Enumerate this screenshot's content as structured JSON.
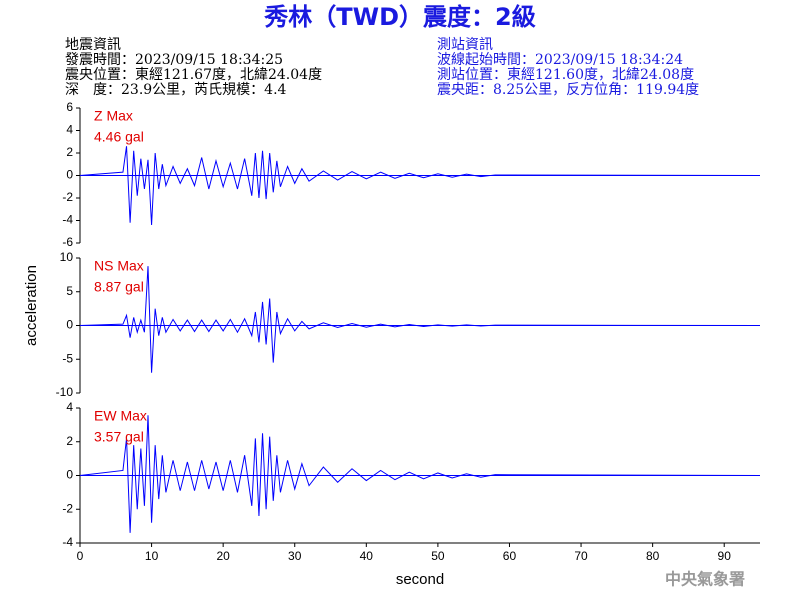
{
  "header": {
    "title": "秀林（TWD）震度：2級",
    "left": [
      "地震資訊",
      "發震時間：2023/09/15 18:34:25",
      "震央位置：東經121.67度，北緯24.04度",
      "深　度：23.9公里，芮氏規模：4.4"
    ],
    "right": [
      "測站資訊",
      "波線起始時間：2023/09/15 18:34:24",
      "測站位置：東經121.60度，北緯24.08度",
      "震央距：8.25公里，反方位角：119.94度"
    ]
  },
  "footer": "中央氣象署",
  "chart_data": [
    {
      "type": "line",
      "annotations": [
        "Z Max",
        "4.46 gal"
      ],
      "color": "#0000ff",
      "xlim": [
        0,
        95
      ],
      "ylim": [
        -6,
        6
      ],
      "yticks": [
        -6,
        -4,
        -2,
        0,
        2,
        4,
        6
      ],
      "x": [
        0,
        6,
        6.5,
        7,
        7.5,
        8,
        8.5,
        9,
        9.5,
        10,
        10.5,
        11,
        11.5,
        12,
        13,
        14,
        15,
        16,
        17,
        18,
        19,
        20,
        21,
        22,
        23,
        24,
        24.5,
        25,
        25.5,
        26,
        26.5,
        27,
        27.5,
        28,
        29,
        30,
        31,
        32,
        34,
        36,
        38,
        40,
        42,
        44,
        46,
        48,
        50,
        52,
        54,
        56,
        58,
        95
      ],
      "values": [
        0,
        0.3,
        2.6,
        -4.2,
        2.2,
        -1.8,
        1.5,
        -1.2,
        1.4,
        -4.4,
        2.0,
        -1.2,
        1.0,
        -0.9,
        0.8,
        -0.7,
        0.6,
        -0.9,
        1.6,
        -1.2,
        1.3,
        -1.0,
        1.1,
        -1.2,
        1.5,
        -1.8,
        2.0,
        -2.0,
        2.2,
        -2.1,
        2.0,
        -1.5,
        1.3,
        -1.0,
        0.8,
        -0.7,
        0.6,
        -0.5,
        0.4,
        -0.4,
        0.35,
        -0.3,
        0.3,
        -0.25,
        0.2,
        -0.2,
        0.15,
        -0.15,
        0.12,
        -0.1,
        0.05,
        0
      ]
    },
    {
      "type": "line",
      "annotations": [
        "NS Max",
        "8.87 gal"
      ],
      "color": "#0000ff",
      "ylabel": "acceleration",
      "xlim": [
        0,
        95
      ],
      "ylim": [
        -10,
        10
      ],
      "yticks": [
        -10,
        -5,
        0,
        5,
        10
      ],
      "x": [
        0,
        6,
        6.5,
        7,
        7.5,
        8,
        8.5,
        9,
        9.5,
        10,
        10.5,
        11,
        11.5,
        12,
        13,
        14,
        15,
        16,
        17,
        18,
        19,
        20,
        21,
        22,
        23,
        24,
        24.5,
        25,
        25.5,
        26,
        26.5,
        27,
        27.5,
        28,
        29,
        30,
        31,
        32,
        34,
        36,
        38,
        40,
        42,
        44,
        46,
        48,
        50,
        52,
        54,
        56,
        58,
        95
      ],
      "values": [
        0,
        0.2,
        1.5,
        -1.8,
        1.2,
        -1.0,
        0.8,
        -1.0,
        8.8,
        -7.0,
        2.5,
        -1.5,
        1.2,
        -1.0,
        0.9,
        -0.8,
        0.8,
        -0.9,
        0.8,
        -0.9,
        0.8,
        -0.8,
        0.9,
        -1.0,
        1.0,
        -1.5,
        2.0,
        -2.5,
        3.5,
        -2.8,
        4.0,
        -5.5,
        2.0,
        -1.2,
        1.0,
        -0.8,
        0.6,
        -0.5,
        0.4,
        -0.3,
        0.3,
        -0.25,
        0.2,
        -0.2,
        0.15,
        -0.15,
        0.1,
        -0.1,
        0.1,
        -0.08,
        0.05,
        0
      ]
    },
    {
      "type": "line",
      "annotations": [
        "EW Max",
        "3.57 gal"
      ],
      "color": "#0000ff",
      "xlabel": "second",
      "xlim": [
        0,
        95
      ],
      "xticks": [
        0,
        10,
        20,
        30,
        40,
        50,
        60,
        70,
        80,
        90
      ],
      "ylim": [
        -4,
        4
      ],
      "yticks": [
        -4,
        -2,
        0,
        2,
        4
      ],
      "x": [
        0,
        6,
        6.5,
        7,
        7.5,
        8,
        8.5,
        9,
        9.5,
        10,
        10.5,
        11,
        11.5,
        12,
        13,
        14,
        15,
        16,
        17,
        18,
        19,
        20,
        21,
        22,
        23,
        24,
        24.5,
        25,
        25.5,
        26,
        26.5,
        27,
        27.5,
        28,
        29,
        30,
        31,
        32,
        34,
        36,
        38,
        40,
        42,
        44,
        46,
        48,
        50,
        52,
        54,
        56,
        58,
        95
      ],
      "values": [
        0,
        0.3,
        2.2,
        -3.4,
        1.8,
        -2.0,
        1.6,
        -1.8,
        3.57,
        -2.8,
        1.8,
        -1.4,
        1.2,
        -1.0,
        0.9,
        -0.9,
        0.8,
        -0.9,
        0.9,
        -0.8,
        0.8,
        -0.9,
        0.9,
        -1.0,
        1.2,
        -1.8,
        2.2,
        -2.4,
        2.5,
        -2.0,
        2.3,
        -1.5,
        1.2,
        -1.0,
        0.9,
        -0.8,
        0.7,
        -0.6,
        0.5,
        -0.4,
        0.4,
        -0.3,
        0.3,
        -0.25,
        0.2,
        -0.2,
        0.15,
        -0.15,
        0.1,
        -0.1,
        0.05,
        0
      ]
    }
  ]
}
